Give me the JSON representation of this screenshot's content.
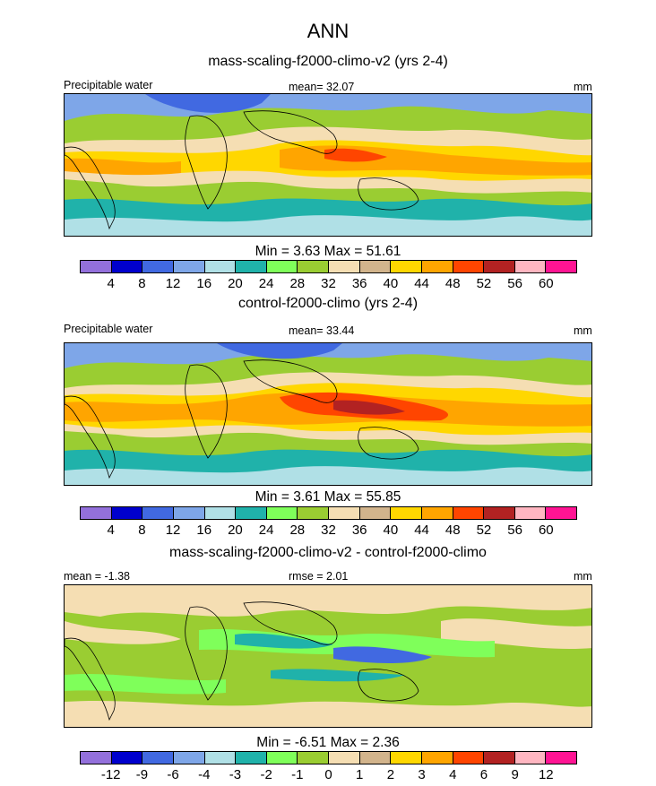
{
  "chart_data": [
    {
      "type": "heatmap",
      "title": "mass-scaling-f2000-climo-v2 (yrs 2-4)",
      "left_label": "Precipitable water",
      "center_label": "mean=  32.07",
      "units": "mm",
      "min_max": "Min =   3.63 Max =  51.61",
      "levels": [
        "4",
        "8",
        "12",
        "16",
        "20",
        "24",
        "28",
        "32",
        "36",
        "40",
        "44",
        "48",
        "52",
        "56",
        "60"
      ]
    },
    {
      "type": "heatmap",
      "title": "control-f2000-climo (yrs 2-4)",
      "left_label": "Precipitable water",
      "center_label": "mean=  33.44",
      "units": "mm",
      "min_max": "Min =   3.61 Max =  55.85",
      "levels": [
        "4",
        "8",
        "12",
        "16",
        "20",
        "24",
        "28",
        "32",
        "36",
        "40",
        "44",
        "48",
        "52",
        "56",
        "60"
      ]
    },
    {
      "type": "heatmap",
      "title": "mass-scaling-f2000-climo-v2 - control-f2000-climo",
      "left_label": "mean =  -1.38",
      "center_label": "rmse =  2.01",
      "units": "mm",
      "min_max": "Min =  -6.51 Max =   2.36",
      "levels": [
        "-12",
        "-9",
        "-6",
        "-4",
        "-3",
        "-2",
        "-1",
        "0",
        "1",
        "2",
        "3",
        "4",
        "6",
        "9",
        "12"
      ]
    }
  ],
  "figure": {
    "title": "ANN"
  },
  "colors": {
    "palette": [
      "#9370db",
      "#0000cd",
      "#4169e1",
      "#7ea6e8",
      "#b0e0e6",
      "#20b2aa",
      "#7fff5a",
      "#9acd32",
      "#f5deb3",
      "#d2b48c",
      "#ffd700",
      "#ffa500",
      "#ff4500",
      "#b22222",
      "#ffb6c1",
      "#ff1493"
    ]
  }
}
